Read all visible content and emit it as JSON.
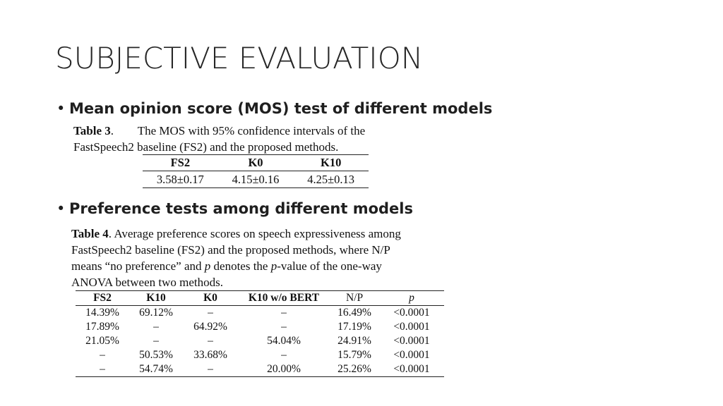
{
  "slide": {
    "title": "SUBJECTIVE EVALUATION"
  },
  "bullets": [
    {
      "symbol": "•",
      "text": "Mean opinion score (MOS) test of different models"
    },
    {
      "symbol": "•",
      "text": "Preference tests among different models"
    }
  ],
  "table3": {
    "label": "Table 3",
    "caption_line1": ".        The MOS with 95% confidence intervals of the",
    "caption_line2": "FastSpeech2 baseline (FS2) and the proposed methods.",
    "headers": [
      "FS2",
      "K0",
      "K10"
    ],
    "row": [
      "3.58±0.17",
      "4.15±0.16",
      "4.25±0.13"
    ]
  },
  "table4": {
    "label": "Table 4",
    "caption_line1": ". Average preference scores on speech expressiveness among",
    "caption_line2": "FastSpeech2 baseline (FS2) and the proposed methods, where N/P",
    "caption_line3a": "means “no preference” and ",
    "caption_p1": "p",
    "caption_line3b": " denotes the ",
    "caption_p2": "p",
    "caption_line3c": "-value of the one-way",
    "caption_line4": "ANOVA between two methods.",
    "headers": [
      "FS2",
      "K10",
      "K0",
      "K10 w/o BERT",
      "N/P",
      "p"
    ],
    "rows": [
      [
        "14.39%",
        "69.12%",
        "–",
        "–",
        "16.49%",
        "<0.0001"
      ],
      [
        "17.89%",
        "–",
        "64.92%",
        "–",
        "17.19%",
        "<0.0001"
      ],
      [
        "21.05%",
        "–",
        "–",
        "54.04%",
        "24.91%",
        "<0.0001"
      ],
      [
        "–",
        "50.53%",
        "33.68%",
        "–",
        "15.79%",
        "<0.0001"
      ],
      [
        "–",
        "54.74%",
        "–",
        "20.00%",
        "25.26%",
        "<0.0001"
      ]
    ]
  }
}
